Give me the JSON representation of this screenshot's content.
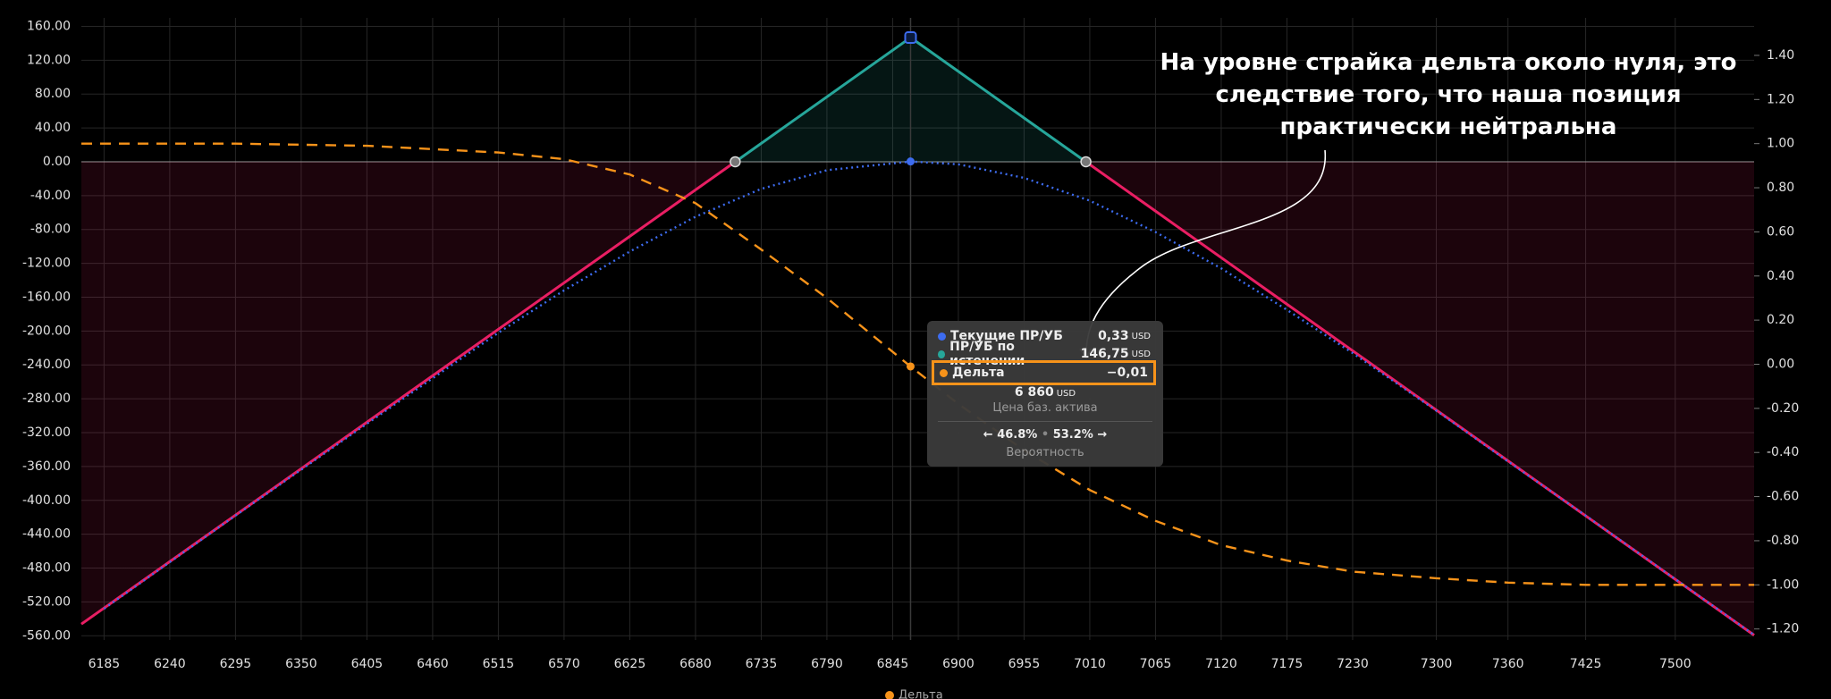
{
  "chart_data": {
    "type": "line",
    "xlim": [
      6166,
      7566
    ],
    "xticks": [
      6185,
      6240,
      6295,
      6350,
      6405,
      6460,
      6515,
      6570,
      6625,
      6680,
      6735,
      6790,
      6845,
      6900,
      6955,
      7010,
      7065,
      7120,
      7175,
      7230,
      7300,
      7360,
      7425,
      7500
    ],
    "ylim": [
      -565,
      170
    ],
    "yticks": [
      {
        "value": 160,
        "label": "160.00"
      },
      {
        "value": 120,
        "label": "120.00"
      },
      {
        "value": 80,
        "label": "80.00"
      },
      {
        "value": 40,
        "label": "40.00"
      },
      {
        "value": 0,
        "label": "0.00"
      },
      {
        "value": -40,
        "label": "-40.00"
      },
      {
        "value": -80,
        "label": "-80.00"
      },
      {
        "value": -120,
        "label": "-120.00"
      },
      {
        "value": -160,
        "label": "-160.00"
      },
      {
        "value": -200,
        "label": "-200.00"
      },
      {
        "value": -240,
        "label": "-240.00"
      },
      {
        "value": -280,
        "label": "-280.00"
      },
      {
        "value": -320,
        "label": "-320.00"
      },
      {
        "value": -360,
        "label": "-360.00"
      },
      {
        "value": -400,
        "label": "-400.00"
      },
      {
        "value": -440,
        "label": "-440.00"
      },
      {
        "value": -480,
        "label": "-480.00"
      },
      {
        "value": -520,
        "label": "-520.00"
      },
      {
        "value": -560,
        "label": "-560.00"
      }
    ],
    "y2lim": [
      -1.25,
      1.57
    ],
    "y2ticks": [
      {
        "value": 1.4,
        "label": "1.40"
      },
      {
        "value": 1.2,
        "label": "1.20"
      },
      {
        "value": 1,
        "label": "1.00"
      },
      {
        "value": 0.8,
        "label": "0.80"
      },
      {
        "value": 0.6,
        "label": "0.60"
      },
      {
        "value": 0.4,
        "label": "0.40"
      },
      {
        "value": 0.2,
        "label": "0.20"
      },
      {
        "value": 0,
        "label": "0.00"
      },
      {
        "value": -0.2,
        "label": "-0.20"
      },
      {
        "value": -0.4,
        "label": "-0.40"
      },
      {
        "value": -0.6,
        "label": "-0.60"
      },
      {
        "value": -0.8,
        "label": "-0.80"
      },
      {
        "value": -1,
        "label": "-1.00"
      },
      {
        "value": -1.2,
        "label": "-1.20"
      }
    ],
    "grid": true,
    "series": [
      {
        "name": "Текущие ПР/УБ",
        "color": "#3d6cf0",
        "style": "dotted",
        "x": [
          6185,
          6295,
          6405,
          6515,
          6570,
          6625,
          6680,
          6735,
          6790,
          6860,
          6900,
          6955,
          7010,
          7065,
          7120,
          7175,
          7230,
          7300,
          7360,
          7425,
          7500,
          7566
        ],
        "values": [
          -528,
          -418,
          -309.5,
          -202,
          -152,
          -106,
          -65,
          -32,
          -10,
          0.33,
          -3,
          -19,
          -46,
          -83,
          -126,
          -175,
          -226,
          -294,
          -354,
          -418,
          -493,
          -559
        ]
      },
      {
        "name": "ПР/УБ по истечении",
        "color": "#26a69a",
        "color_loss": "#e91e63",
        "style": "solid",
        "x": [
          6166,
          6713.25,
          6860,
          7006.75,
          7566
        ],
        "values": [
          -546.25,
          0,
          146.75,
          0,
          -559.25
        ]
      },
      {
        "name": "Дельта",
        "color": "#f7931a",
        "style": "dashed",
        "axis": "y2",
        "in_legend": true,
        "x": [
          6166,
          6295,
          6405,
          6515,
          6570,
          6625,
          6680,
          6735,
          6790,
          6860,
          6900,
          6955,
          7010,
          7065,
          7120,
          7175,
          7230,
          7300,
          7360,
          7425,
          7500,
          7566
        ],
        "values": [
          1,
          1,
          0.99,
          0.96,
          0.93,
          0.86,
          0.73,
          0.52,
          0.3,
          -0.01,
          -0.18,
          -0.39,
          -0.57,
          -0.71,
          -0.82,
          -0.89,
          -0.94,
          -0.97,
          -0.99,
          -1,
          -1,
          -1
        ]
      }
    ],
    "tooltip": {
      "rows": [
        {
          "label": "Текущие ПР/УБ",
          "value": "0,33",
          "unit": "USD"
        },
        {
          "label": "ПР/УБ по истечении",
          "value": "146,75",
          "unit": "USD"
        },
        {
          "label": "Дельта",
          "value": "−0,01"
        }
      ],
      "price": "6 860",
      "price_unit": "USD",
      "price_label": "Цена баз. актива",
      "prob_left": "46.8%",
      "prob_right": "53.2%",
      "prob_label": "Вероятность"
    },
    "annotation": [
      "На уровне страйка дельта около нуля, это",
      "следствие того, что наша позиция",
      "практически нейтральна"
    ]
  }
}
